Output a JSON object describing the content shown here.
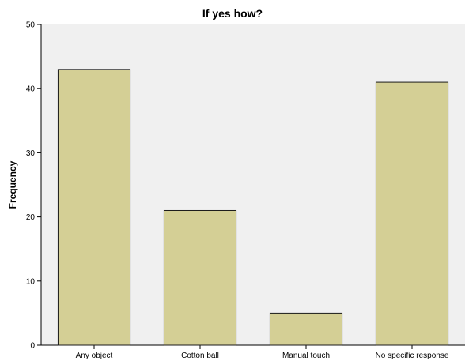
{
  "chart_data": {
    "type": "bar",
    "title": "If yes how?",
    "xlabel": "",
    "ylabel": "Frequency",
    "categories": [
      "Any object",
      "Cotton ball",
      "Manual touch",
      "No specific response"
    ],
    "values": [
      43,
      21,
      5,
      41
    ],
    "ylim": [
      0,
      50
    ],
    "yticks": [
      "0",
      "10",
      "20",
      "30",
      "40",
      "50"
    ],
    "grid": false,
    "legend": "none",
    "colors": {
      "plot_background": "#F0F0F0",
      "bar_fill": "#D4CF95",
      "bar_stroke": "#1a1a1a",
      "axis": "#000000"
    }
  }
}
